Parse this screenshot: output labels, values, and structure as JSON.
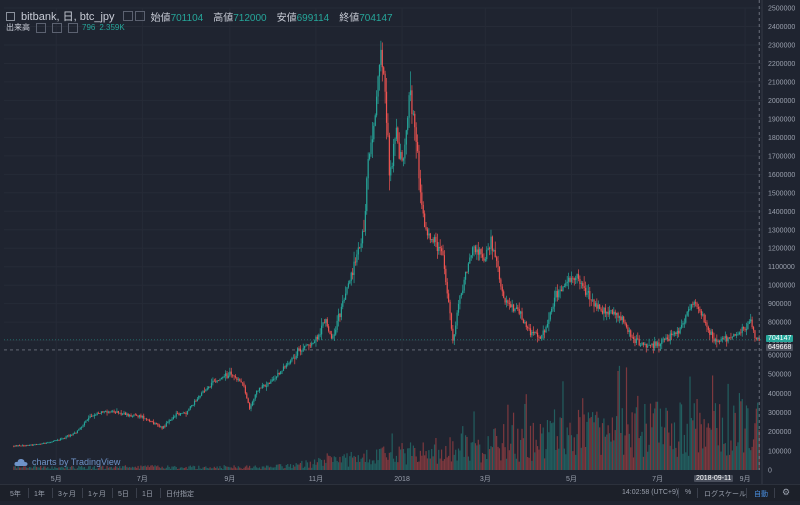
{
  "header": {
    "symbol": "bitbank, 日, btc_jpy",
    "open_label": "始値",
    "open": "701104",
    "high_label": "高値",
    "high": "712000",
    "low_label": "安値",
    "low": "699114",
    "close_label": "終値",
    "close": "704147",
    "volume_label": "出来高",
    "volume_value": "796",
    "volume_ma": "2.359K"
  },
  "watermark": "charts by TradingView",
  "crosshair": {
    "price": "649668",
    "date": "2018-09-11"
  },
  "last_price_tag": "704147",
  "bottom_bar": {
    "ranges": [
      "5年",
      "1年",
      "3ヶ月",
      "1ヶ月",
      "5日",
      "1日",
      "日付指定"
    ],
    "time": "14:02:58 (UTC+9)",
    "percent": "%",
    "log": "ログスケール",
    "auto": "自動",
    "settings_icon": "gear-icon"
  },
  "colors": {
    "up": "#26a69a",
    "down": "#ef5350",
    "bg": "#1f2430",
    "grid": "#262b37",
    "text": "#9aa0ad"
  },
  "chart_data": {
    "type": "candlestick",
    "title": "bitbank, 日, btc_jpy",
    "price_axis": {
      "min": 0,
      "max": 2500000,
      "ticks": [
        2500000,
        2400000,
        2300000,
        2200000,
        2100000,
        2000000,
        1900000,
        1800000,
        1700000,
        1600000,
        1500000,
        1400000,
        1300000,
        1200000,
        1100000,
        1000000,
        900000,
        800000,
        700000
      ],
      "scale": "linear"
    },
    "volume_axis": {
      "max": 600000,
      "ticks": [
        600000,
        500000,
        400000,
        300000,
        200000,
        100000,
        0
      ]
    },
    "x_ticks": [
      "5月",
      "7月",
      "9月",
      "11月",
      "2018",
      "3月",
      "5月",
      "7月",
      "9月"
    ],
    "price_path": [
      [
        "2017-04-01",
        130000
      ],
      [
        "2017-04-20",
        140000
      ],
      [
        "2017-05-01",
        160000
      ],
      [
        "2017-05-15",
        200000
      ],
      [
        "2017-05-25",
        290000
      ],
      [
        "2017-06-05",
        320000
      ],
      [
        "2017-06-20",
        300000
      ],
      [
        "2017-07-01",
        290000
      ],
      [
        "2017-07-15",
        230000
      ],
      [
        "2017-07-25",
        300000
      ],
      [
        "2017-08-01",
        310000
      ],
      [
        "2017-08-10",
        400000
      ],
      [
        "2017-08-20",
        470000
      ],
      [
        "2017-09-01",
        520000
      ],
      [
        "2017-09-10",
        470000
      ],
      [
        "2017-09-15",
        330000
      ],
      [
        "2017-09-20",
        430000
      ],
      [
        "2017-10-01",
        480000
      ],
      [
        "2017-10-10",
        560000
      ],
      [
        "2017-10-20",
        650000
      ],
      [
        "2017-11-01",
        700000
      ],
      [
        "2017-11-08",
        820000
      ],
      [
        "2017-11-12",
        700000
      ],
      [
        "2017-11-20",
        900000
      ],
      [
        "2017-11-28",
        1100000
      ],
      [
        "2017-12-05",
        1300000
      ],
      [
        "2017-12-08",
        1700000
      ],
      [
        "2017-12-12",
        1850000
      ],
      [
        "2017-12-17",
        2300000
      ],
      [
        "2017-12-20",
        2100000
      ],
      [
        "2017-12-23",
        1600000
      ],
      [
        "2017-12-28",
        1800000
      ],
      [
        "2018-01-01",
        1650000
      ],
      [
        "2018-01-07",
        2050000
      ],
      [
        "2018-01-12",
        1700000
      ],
      [
        "2018-01-17",
        1300000
      ],
      [
        "2018-01-22",
        1250000
      ],
      [
        "2018-01-30",
        1150000
      ],
      [
        "2018-02-06",
        700000
      ],
      [
        "2018-02-10",
        900000
      ],
      [
        "2018-02-20",
        1200000
      ],
      [
        "2018-02-28",
        1150000
      ],
      [
        "2018-03-05",
        1250000
      ],
      [
        "2018-03-15",
        900000
      ],
      [
        "2018-03-25",
        850000
      ],
      [
        "2018-04-01",
        750000
      ],
      [
        "2018-04-10",
        720000
      ],
      [
        "2018-04-20",
        950000
      ],
      [
        "2018-05-05",
        1050000
      ],
      [
        "2018-05-15",
        920000
      ],
      [
        "2018-05-25",
        850000
      ],
      [
        "2018-06-05",
        830000
      ],
      [
        "2018-06-12",
        720000
      ],
      [
        "2018-06-25",
        660000
      ],
      [
        "2018-07-05",
        700000
      ],
      [
        "2018-07-15",
        740000
      ],
      [
        "2018-07-25",
        900000
      ],
      [
        "2018-08-01",
        850000
      ],
      [
        "2018-08-10",
        700000
      ],
      [
        "2018-08-20",
        710000
      ],
      [
        "2018-09-01",
        770000
      ],
      [
        "2018-09-05",
        800000
      ],
      [
        "2018-09-08",
        720000
      ],
      [
        "2018-09-11",
        704147
      ]
    ],
    "last_price": 704147,
    "crosshair_price": 649668
  }
}
